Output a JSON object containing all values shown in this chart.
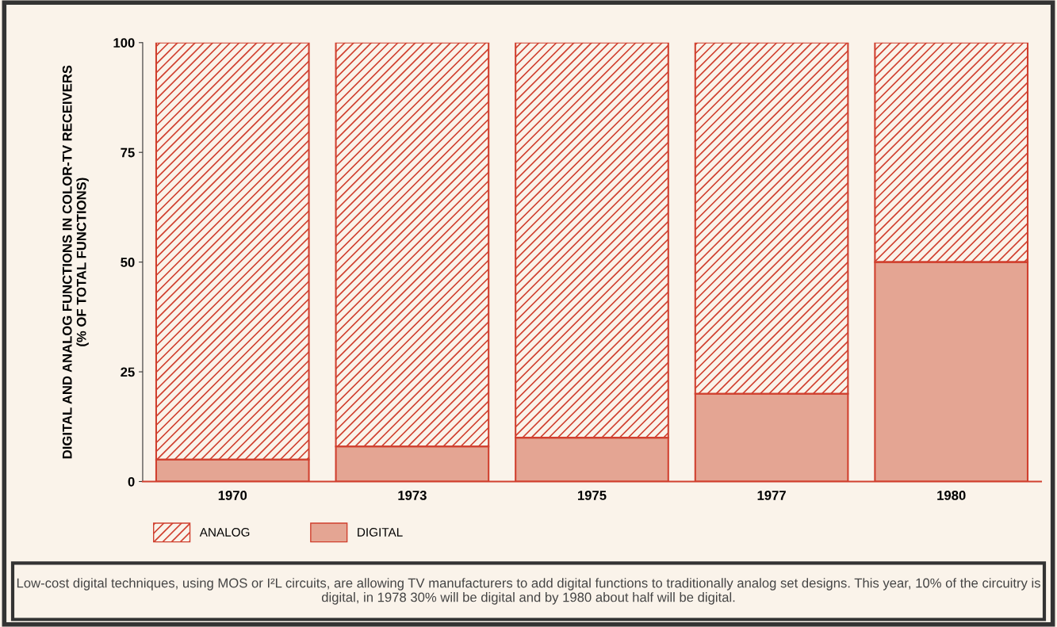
{
  "chart_data": {
    "type": "bar",
    "stacked": true,
    "ylabel": "DIGITAL AND ANALOG FUNCTIONS IN COLOR-TV RECEIVERS\n(% OF TOTAL FUNCTIONS)",
    "categories": [
      "1970",
      "1973",
      "1975",
      "1977",
      "1980"
    ],
    "series": [
      {
        "name": "DIGITAL",
        "color": "#e4a593",
        "values": [
          5,
          8,
          10,
          20,
          50
        ]
      },
      {
        "name": "ANALOG",
        "color": "#d0402f",
        "values": [
          95,
          92,
          90,
          80,
          50
        ]
      }
    ],
    "ylim": [
      0,
      100
    ],
    "yticks": [
      0,
      25,
      50,
      75,
      100
    ],
    "grid": false,
    "legend": "bottom",
    "annotations": [
      "Low-cost digital techniques, using MOS or I²L circuits, are allowing TV manufacturers to add digital functions to traditionally analog set designs. This year, 10% of the circuitry is digital, in 1978 30% will be digital and by 1980 about half will be digital."
    ]
  }
}
